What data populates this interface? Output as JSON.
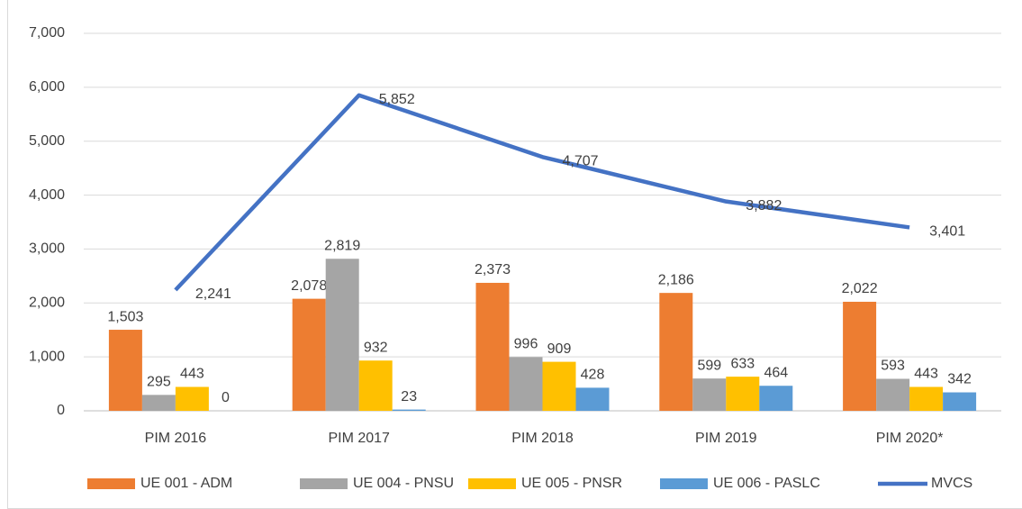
{
  "chart_data": {
    "type": "bar",
    "categories": [
      "PIM 2016",
      "PIM 2017",
      "PIM 2018",
      "PIM 2019",
      "PIM 2020*"
    ],
    "series": [
      {
        "name": "UE 001 - ADM",
        "color": "#ED7D31",
        "values": [
          1503,
          2078,
          2373,
          2186,
          2022
        ],
        "value_labels": [
          "1,503",
          "2,078",
          "2,373",
          "2,186",
          "2,022"
        ]
      },
      {
        "name": "UE 004 - PNSU",
        "color": "#A5A5A5",
        "values": [
          295,
          2819,
          996,
          599,
          593
        ],
        "value_labels": [
          "295",
          "2,819",
          "996",
          "599",
          "593"
        ]
      },
      {
        "name": "UE 005 - PNSR",
        "color": "#FFC000",
        "values": [
          443,
          932,
          909,
          633,
          443
        ],
        "value_labels": [
          "443",
          "932",
          "909",
          "633",
          "443"
        ]
      },
      {
        "name": "UE 006 - PASLC",
        "color": "#5B9BD5",
        "values": [
          0,
          23,
          428,
          464,
          342
        ],
        "value_labels": [
          "0",
          "23",
          "428",
          "464",
          "342"
        ]
      },
      {
        "name": "MVCS",
        "type": "line",
        "color": "#4472C4",
        "values": [
          2241,
          5852,
          4707,
          3882,
          3401
        ],
        "value_labels": [
          "2,241",
          "5,852",
          "4,707",
          "3,882",
          "3,401"
        ]
      }
    ],
    "ylim": [
      0,
      7000
    ],
    "yticks": [
      0,
      {
        "value": 1000,
        "label": "1,000"
      },
      {
        "value": 2000,
        "label": "2,000"
      },
      {
        "value": 3000,
        "label": "3,000"
      },
      {
        "value": 4000,
        "label": "4,000"
      },
      {
        "value": 5000,
        "label": "5,000"
      },
      {
        "value": 6000,
        "label": "6,000"
      },
      {
        "value": 7000,
        "label": "7,000"
      }
    ],
    "grid": true,
    "legend": "bottom"
  }
}
